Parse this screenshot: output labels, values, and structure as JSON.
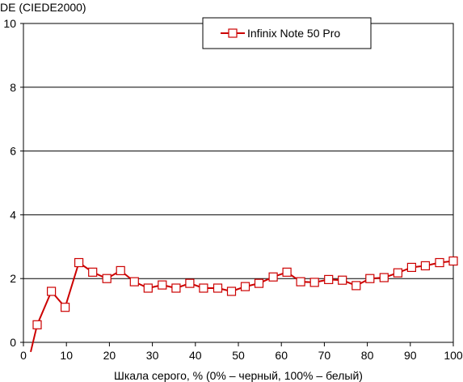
{
  "chart_data": {
    "type": "line",
    "title": "",
    "ylabel": "DE (CIEDE2000)",
    "xlabel": "Шкала серого, % (0% – черный, 100% – белый)",
    "xlim": [
      0,
      100
    ],
    "ylim": [
      0,
      10
    ],
    "x_ticks": [
      0,
      10,
      20,
      30,
      40,
      50,
      60,
      70,
      80,
      90,
      100
    ],
    "y_ticks": [
      0,
      2,
      4,
      6,
      8,
      10
    ],
    "x_tick_labels": [
      "0",
      "10",
      "20",
      "30",
      "40",
      "50",
      "60",
      "70",
      "80",
      "90",
      "100"
    ],
    "y_tick_labels": [
      "0",
      "2",
      "4",
      "6",
      "8",
      "10"
    ],
    "grid": "horizontal",
    "legend_position": "top-center",
    "series": [
      {
        "name": "Infinix Note 50 Pro",
        "color": "#cc0000",
        "marker": "square-open",
        "x": [
          1.7,
          3.2,
          6.5,
          9.7,
          12.9,
          16.1,
          19.4,
          22.6,
          25.8,
          29.0,
          32.3,
          35.5,
          38.7,
          41.9,
          45.2,
          48.4,
          51.6,
          54.8,
          58.1,
          61.3,
          64.5,
          67.7,
          71.0,
          74.2,
          77.4,
          80.6,
          83.9,
          87.1,
          90.3,
          93.5,
          96.8,
          100.0
        ],
        "y": [
          -0.3,
          0.55,
          1.6,
          1.1,
          2.5,
          2.2,
          2.0,
          2.25,
          1.9,
          1.7,
          1.8,
          1.7,
          1.85,
          1.7,
          1.7,
          1.6,
          1.75,
          1.85,
          2.05,
          2.2,
          1.9,
          1.88,
          1.97,
          1.95,
          1.78,
          2.0,
          2.03,
          2.18,
          2.35,
          2.4,
          2.5,
          2.55
        ]
      }
    ]
  }
}
